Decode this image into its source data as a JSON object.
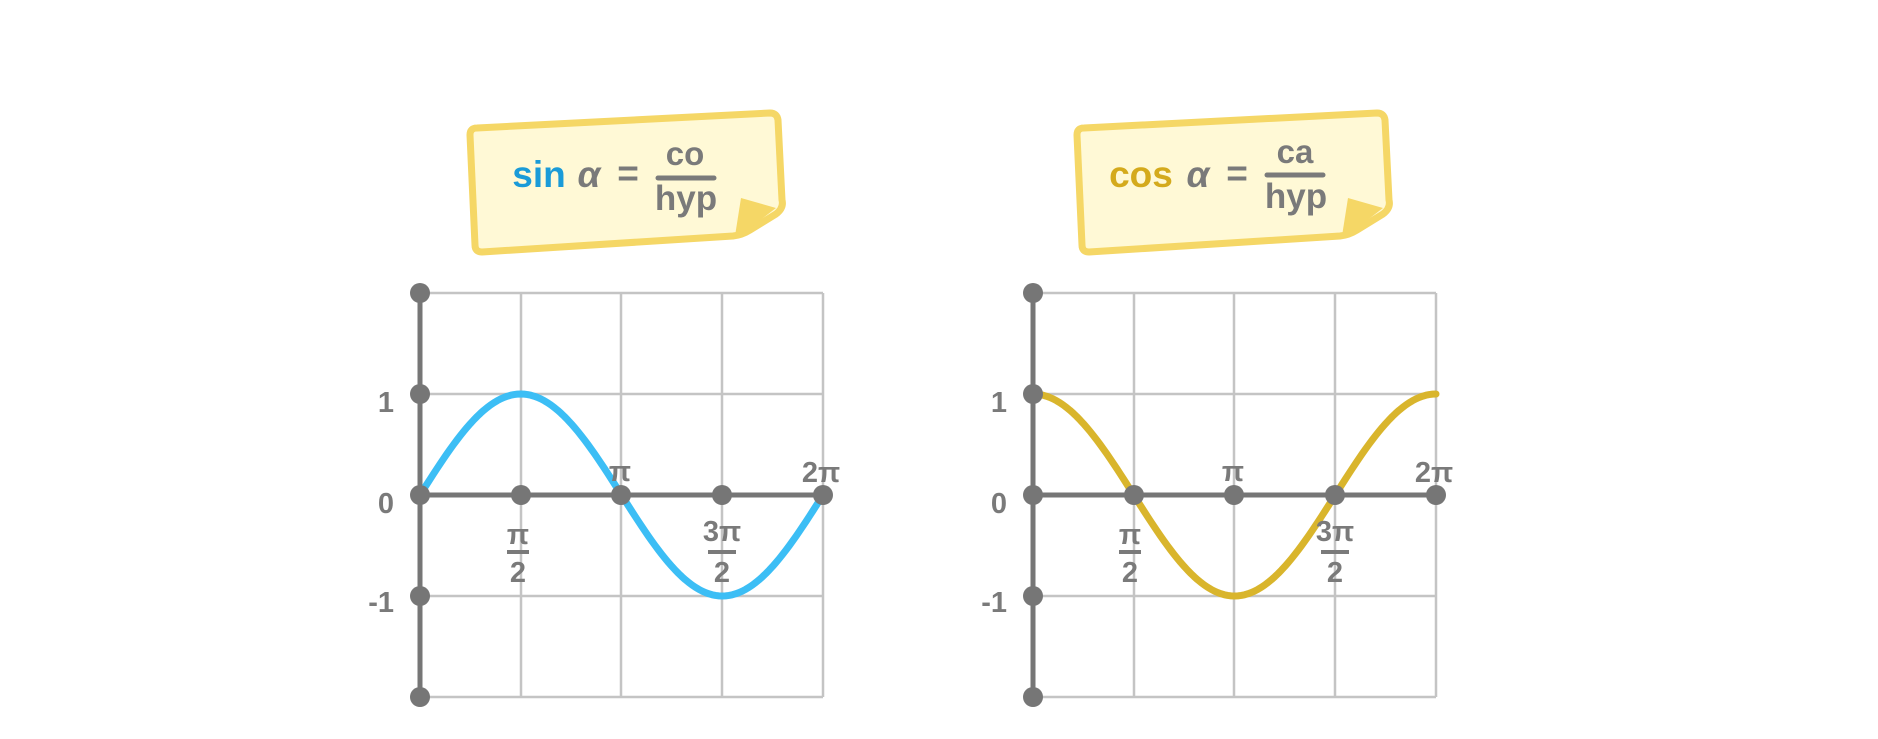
{
  "colors": {
    "sin_curve": "#3cbef5",
    "sin_label": "#1a9bd8",
    "cos_curve": "#d9b52c",
    "cos_label": "#d4aa1c",
    "axis": "#767676",
    "grid": "#c4c4c4",
    "note_fill": "#fff9d6",
    "note_border": "#f5d766",
    "text": "#7a7a7a"
  },
  "sin_note": {
    "func": "sin",
    "alpha": "α",
    "equals": "=",
    "numerator": "co",
    "denominator": "hyp"
  },
  "cos_note": {
    "func": "cos",
    "alpha": "α",
    "equals": "=",
    "numerator": "ca",
    "denominator": "hyp"
  },
  "sin_graph": {
    "function": "sin",
    "y_labels": {
      "one": "1",
      "zero": "0",
      "neg_one": "-1"
    },
    "x_labels": {
      "pi_half_num": "π",
      "pi_half_den": "2",
      "pi": "π",
      "three_pi_half_num": "3π",
      "three_pi_half_den": "2",
      "two_pi": "2π"
    }
  },
  "cos_graph": {
    "function": "cos",
    "y_labels": {
      "one": "1",
      "zero": "0",
      "neg_one": "-1"
    },
    "x_labels": {
      "pi_half_num": "π",
      "pi_half_den": "2",
      "pi": "π",
      "three_pi_half_num": "3π",
      "three_pi_half_den": "2",
      "two_pi": "2π"
    }
  }
}
